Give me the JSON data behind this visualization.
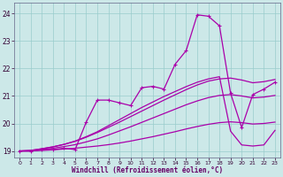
{
  "xlabel": "Windchill (Refroidissement éolien,°C)",
  "xlim": [
    -0.5,
    23.5
  ],
  "ylim": [
    18.75,
    24.4
  ],
  "yticks": [
    19,
    20,
    21,
    22,
    23,
    24
  ],
  "xticks": [
    0,
    1,
    2,
    3,
    4,
    5,
    6,
    7,
    8,
    9,
    10,
    11,
    12,
    13,
    14,
    15,
    16,
    17,
    18,
    19,
    20,
    21,
    22,
    23
  ],
  "bg_color": "#cce8e8",
  "grid_color": "#99cccc",
  "line_color": "#aa00aa",
  "figsize": [
    3.2,
    2.0
  ],
  "dpi": 100,
  "curve_spike": {
    "x": [
      0,
      1,
      2,
      3,
      4,
      5,
      6,
      7,
      8,
      9,
      10,
      11,
      12,
      13,
      14,
      15,
      16,
      17,
      18,
      19,
      20,
      21,
      22,
      23
    ],
    "y": [
      19.0,
      19.0,
      19.05,
      19.05,
      19.1,
      19.05,
      20.05,
      20.85,
      20.85,
      20.75,
      20.65,
      21.3,
      21.35,
      21.25,
      22.15,
      22.65,
      23.95,
      23.9,
      23.55,
      21.1,
      19.85,
      21.05,
      21.25,
      21.5
    ]
  },
  "curve_low1": {
    "x": [
      0,
      1,
      2,
      3,
      4,
      5,
      6,
      7,
      8,
      9,
      10,
      11,
      12,
      13,
      14,
      15,
      16,
      17,
      18,
      19,
      20,
      21,
      22,
      23
    ],
    "y": [
      19.0,
      19.0,
      19.02,
      19.04,
      19.07,
      19.1,
      19.14,
      19.18,
      19.23,
      19.29,
      19.36,
      19.44,
      19.52,
      19.61,
      19.7,
      19.8,
      19.89,
      19.97,
      20.03,
      20.06,
      20.03,
      19.98,
      20.0,
      20.05
    ]
  },
  "curve_mid": {
    "x": [
      0,
      1,
      2,
      3,
      4,
      5,
      6,
      7,
      8,
      9,
      10,
      11,
      12,
      13,
      14,
      15,
      16,
      17,
      18,
      19,
      20,
      21,
      22,
      23
    ],
    "y": [
      19.0,
      19.0,
      19.05,
      19.1,
      19.16,
      19.23,
      19.33,
      19.44,
      19.58,
      19.73,
      19.88,
      20.04,
      20.2,
      20.36,
      20.52,
      20.68,
      20.82,
      20.94,
      21.02,
      21.05,
      21.0,
      20.93,
      20.96,
      21.02
    ]
  },
  "curve_high": {
    "x": [
      0,
      1,
      2,
      3,
      4,
      5,
      6,
      7,
      8,
      9,
      10,
      11,
      12,
      13,
      14,
      15,
      16,
      17,
      18,
      19,
      20,
      21,
      22,
      23
    ],
    "y": [
      19.0,
      19.02,
      19.08,
      19.15,
      19.24,
      19.35,
      19.5,
      19.67,
      19.86,
      20.05,
      20.25,
      20.45,
      20.65,
      20.85,
      21.04,
      21.23,
      21.4,
      21.54,
      21.62,
      21.65,
      21.58,
      21.48,
      21.52,
      21.6
    ]
  },
  "curve_drop": {
    "x": [
      0,
      1,
      2,
      3,
      4,
      5,
      6,
      7,
      8,
      9,
      10,
      11,
      12,
      13,
      14,
      15,
      16,
      17,
      18,
      19,
      20,
      21,
      22,
      23
    ],
    "y": [
      19.0,
      19.02,
      19.08,
      19.15,
      19.24,
      19.36,
      19.52,
      19.7,
      19.92,
      20.14,
      20.36,
      20.58,
      20.78,
      20.98,
      21.16,
      21.34,
      21.5,
      21.62,
      21.7,
      19.72,
      19.22,
      19.18,
      19.22,
      19.75
    ]
  }
}
